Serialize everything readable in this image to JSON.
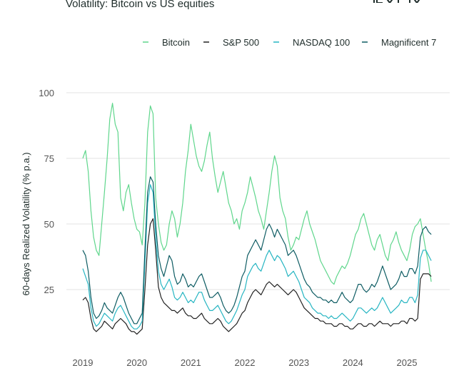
{
  "chart_data": {
    "type": "line",
    "title": "Volatility: Bitcoin vs US equities",
    "xlabel": "",
    "ylabel": "60-days Realized Volatility (% p.a.)",
    "ylim": [
      0,
      100
    ],
    "xlim": [
      2018.95,
      2025.6
    ],
    "yticks": [
      25,
      50,
      75,
      100
    ],
    "ytick_labels": [
      "25",
      "50",
      "75",
      "100"
    ],
    "xticks": [
      2019,
      2020,
      2021,
      2022,
      2023,
      2024,
      2025
    ],
    "xtick_labels": [
      "2019",
      "2020",
      "2021",
      "2022",
      "2023",
      "2024",
      "2025"
    ],
    "grid": true,
    "legend": "top-right",
    "series": [
      {
        "name": "Bitcoin",
        "color": "#5fd68c",
        "x": [
          2019.0,
          2019.05,
          2019.1,
          2019.15,
          2019.2,
          2019.25,
          2019.3,
          2019.35,
          2019.4,
          2019.45,
          2019.5,
          2019.55,
          2019.6,
          2019.65,
          2019.7,
          2019.75,
          2019.8,
          2019.85,
          2019.9,
          2019.95,
          2020.0,
          2020.05,
          2020.1,
          2020.15,
          2020.2,
          2020.25,
          2020.3,
          2020.35,
          2020.4,
          2020.45,
          2020.5,
          2020.55,
          2020.6,
          2020.65,
          2020.7,
          2020.75,
          2020.8,
          2020.85,
          2020.9,
          2020.95,
          2021.0,
          2021.05,
          2021.1,
          2021.15,
          2021.2,
          2021.25,
          2021.3,
          2021.35,
          2021.4,
          2021.45,
          2021.5,
          2021.55,
          2021.6,
          2021.65,
          2021.7,
          2021.75,
          2021.8,
          2021.85,
          2021.9,
          2021.95,
          2022.0,
          2022.05,
          2022.1,
          2022.15,
          2022.2,
          2022.25,
          2022.3,
          2022.35,
          2022.4,
          2022.45,
          2022.5,
          2022.55,
          2022.6,
          2022.65,
          2022.7,
          2022.75,
          2022.8,
          2022.85,
          2022.9,
          2022.95,
          2023.0,
          2023.05,
          2023.1,
          2023.15,
          2023.2,
          2023.25,
          2023.3,
          2023.35,
          2023.4,
          2023.45,
          2023.5,
          2023.55,
          2023.6,
          2023.65,
          2023.7,
          2023.75,
          2023.8,
          2023.85,
          2023.9,
          2023.95,
          2024.0,
          2024.05,
          2024.1,
          2024.15,
          2024.2,
          2024.25,
          2024.3,
          2024.35,
          2024.4,
          2024.45,
          2024.5,
          2024.55,
          2024.6,
          2024.65,
          2024.7,
          2024.75,
          2024.8,
          2024.85,
          2024.9,
          2024.95,
          2025.0,
          2025.05,
          2025.1,
          2025.15,
          2025.2,
          2025.25,
          2025.3,
          2025.35,
          2025.4,
          2025.45
        ],
        "values": [
          75,
          78,
          70,
          55,
          45,
          40,
          38,
          50,
          62,
          75,
          90,
          96,
          88,
          85,
          60,
          55,
          62,
          65,
          58,
          52,
          48,
          47,
          42,
          58,
          85,
          95,
          92,
          60,
          50,
          43,
          40,
          42,
          50,
          55,
          52,
          45,
          50,
          58,
          70,
          78,
          88,
          82,
          76,
          72,
          70,
          74,
          80,
          85,
          75,
          68,
          62,
          66,
          70,
          64,
          58,
          55,
          50,
          52,
          48,
          55,
          58,
          62,
          68,
          64,
          60,
          55,
          52,
          48,
          55,
          62,
          70,
          76,
          72,
          60,
          55,
          52,
          45,
          40,
          42,
          45,
          44,
          48,
          52,
          55,
          50,
          47,
          44,
          40,
          36,
          34,
          32,
          30,
          28,
          27,
          30,
          32,
          34,
          33,
          35,
          38,
          42,
          46,
          48,
          52,
          54,
          50,
          46,
          42,
          40,
          44,
          46,
          42,
          38,
          36,
          42,
          44,
          47,
          43,
          40,
          38,
          36,
          40,
          46,
          49,
          50,
          52,
          46,
          40,
          35,
          28
        ]
      },
      {
        "name": "S&P 500",
        "color": "#222222",
        "x": [
          2019.0,
          2019.05,
          2019.1,
          2019.15,
          2019.2,
          2019.25,
          2019.3,
          2019.35,
          2019.4,
          2019.45,
          2019.5,
          2019.55,
          2019.6,
          2019.65,
          2019.7,
          2019.75,
          2019.8,
          2019.85,
          2019.9,
          2019.95,
          2020.0,
          2020.05,
          2020.1,
          2020.15,
          2020.2,
          2020.25,
          2020.3,
          2020.35,
          2020.4,
          2020.45,
          2020.5,
          2020.55,
          2020.6,
          2020.65,
          2020.7,
          2020.75,
          2020.8,
          2020.85,
          2020.9,
          2020.95,
          2021.0,
          2021.05,
          2021.1,
          2021.15,
          2021.2,
          2021.25,
          2021.3,
          2021.35,
          2021.4,
          2021.45,
          2021.5,
          2021.55,
          2021.6,
          2021.65,
          2021.7,
          2021.75,
          2021.8,
          2021.85,
          2021.9,
          2021.95,
          2022.0,
          2022.05,
          2022.1,
          2022.15,
          2022.2,
          2022.25,
          2022.3,
          2022.35,
          2022.4,
          2022.45,
          2022.5,
          2022.55,
          2022.6,
          2022.65,
          2022.7,
          2022.75,
          2022.8,
          2022.85,
          2022.9,
          2022.95,
          2023.0,
          2023.05,
          2023.1,
          2023.15,
          2023.2,
          2023.25,
          2023.3,
          2023.35,
          2023.4,
          2023.45,
          2023.5,
          2023.55,
          2023.6,
          2023.65,
          2023.7,
          2023.75,
          2023.8,
          2023.85,
          2023.9,
          2023.95,
          2024.0,
          2024.05,
          2024.1,
          2024.15,
          2024.2,
          2024.25,
          2024.3,
          2024.35,
          2024.4,
          2024.45,
          2024.5,
          2024.55,
          2024.6,
          2024.65,
          2024.7,
          2024.75,
          2024.8,
          2024.85,
          2024.9,
          2024.95,
          2025.0,
          2025.05,
          2025.1,
          2025.15,
          2025.2,
          2025.25,
          2025.3,
          2025.35,
          2025.4,
          2025.45
        ],
        "values": [
          21,
          22,
          20,
          14,
          10,
          9,
          10,
          11,
          13,
          12,
          11,
          10,
          12,
          13,
          14,
          13,
          12,
          10,
          9,
          9,
          8,
          9,
          10,
          25,
          42,
          50,
          52,
          40,
          26,
          22,
          20,
          19,
          18,
          17,
          17,
          16,
          17,
          18,
          16,
          15,
          15,
          14,
          14,
          15,
          16,
          14,
          13,
          12,
          12,
          13,
          14,
          13,
          11,
          10,
          9,
          10,
          11,
          12,
          14,
          16,
          17,
          20,
          22,
          24,
          25,
          24,
          23,
          25,
          27,
          28,
          27,
          26,
          27,
          26,
          25,
          24,
          23,
          24,
          25,
          24,
          22,
          20,
          18,
          17,
          16,
          15,
          14,
          14,
          13,
          13,
          12,
          12,
          12,
          11,
          11,
          12,
          12,
          11,
          11,
          10,
          10,
          11,
          12,
          12,
          11,
          11,
          12,
          12,
          11,
          12,
          13,
          12,
          12,
          12,
          11,
          12,
          12,
          12,
          13,
          13,
          12,
          14,
          14,
          13,
          14,
          29,
          31,
          31,
          31,
          30
        ]
      },
      {
        "name": "NASDAQ 100",
        "color": "#26b5c2",
        "x": [
          2019.0,
          2019.05,
          2019.1,
          2019.15,
          2019.2,
          2019.25,
          2019.3,
          2019.35,
          2019.4,
          2019.45,
          2019.5,
          2019.55,
          2019.6,
          2019.65,
          2019.7,
          2019.75,
          2019.8,
          2019.85,
          2019.9,
          2019.95,
          2020.0,
          2020.05,
          2020.1,
          2020.15,
          2020.2,
          2020.25,
          2020.3,
          2020.35,
          2020.4,
          2020.45,
          2020.5,
          2020.55,
          2020.6,
          2020.65,
          2020.7,
          2020.75,
          2020.8,
          2020.85,
          2020.9,
          2020.95,
          2021.0,
          2021.05,
          2021.1,
          2021.15,
          2021.2,
          2021.25,
          2021.3,
          2021.35,
          2021.4,
          2021.45,
          2021.5,
          2021.55,
          2021.6,
          2021.65,
          2021.7,
          2021.75,
          2021.8,
          2021.85,
          2021.9,
          2021.95,
          2022.0,
          2022.05,
          2022.1,
          2022.15,
          2022.2,
          2022.25,
          2022.3,
          2022.35,
          2022.4,
          2022.45,
          2022.5,
          2022.55,
          2022.6,
          2022.65,
          2022.7,
          2022.75,
          2022.8,
          2022.85,
          2022.9,
          2022.95,
          2023.0,
          2023.05,
          2023.1,
          2023.15,
          2023.2,
          2023.25,
          2023.3,
          2023.35,
          2023.4,
          2023.45,
          2023.5,
          2023.55,
          2023.6,
          2023.65,
          2023.7,
          2023.75,
          2023.8,
          2023.85,
          2023.9,
          2023.95,
          2024.0,
          2024.05,
          2024.1,
          2024.15,
          2024.2,
          2024.25,
          2024.3,
          2024.35,
          2024.4,
          2024.45,
          2024.5,
          2024.55,
          2024.6,
          2024.65,
          2024.7,
          2024.75,
          2024.8,
          2024.85,
          2024.9,
          2024.95,
          2025.0,
          2025.05,
          2025.1,
          2025.15,
          2025.2,
          2025.25,
          2025.3,
          2025.35,
          2025.4,
          2025.45
        ],
        "values": [
          33,
          30,
          27,
          18,
          13,
          11,
          12,
          14,
          16,
          15,
          14,
          13,
          16,
          18,
          19,
          17,
          15,
          13,
          11,
          10,
          10,
          11,
          13,
          35,
          58,
          65,
          62,
          45,
          32,
          27,
          25,
          27,
          29,
          26,
          22,
          21,
          22,
          24,
          22,
          20,
          21,
          20,
          22,
          24,
          24,
          21,
          19,
          17,
          17,
          18,
          19,
          17,
          15,
          13,
          12,
          13,
          15,
          17,
          20,
          23,
          25,
          30,
          32,
          34,
          35,
          33,
          32,
          35,
          38,
          40,
          38,
          36,
          38,
          37,
          35,
          33,
          30,
          31,
          32,
          30,
          28,
          25,
          22,
          21,
          20,
          18,
          17,
          16,
          16,
          15,
          15,
          14,
          15,
          14,
          14,
          15,
          16,
          15,
          14,
          13,
          14,
          16,
          18,
          18,
          17,
          16,
          17,
          18,
          17,
          18,
          20,
          22,
          20,
          18,
          16,
          17,
          18,
          19,
          21,
          20,
          20,
          22,
          22,
          20,
          23,
          37,
          40,
          40,
          38,
          36
        ]
      },
      {
        "name": "Magnificent 7",
        "color": "#0e5c63",
        "x": [
          2019.0,
          2019.05,
          2019.1,
          2019.15,
          2019.2,
          2019.25,
          2019.3,
          2019.35,
          2019.4,
          2019.45,
          2019.5,
          2019.55,
          2019.6,
          2019.65,
          2019.7,
          2019.75,
          2019.8,
          2019.85,
          2019.9,
          2019.95,
          2020.0,
          2020.05,
          2020.1,
          2020.15,
          2020.2,
          2020.25,
          2020.3,
          2020.35,
          2020.4,
          2020.45,
          2020.5,
          2020.55,
          2020.6,
          2020.65,
          2020.7,
          2020.75,
          2020.8,
          2020.85,
          2020.9,
          2020.95,
          2021.0,
          2021.05,
          2021.1,
          2021.15,
          2021.2,
          2021.25,
          2021.3,
          2021.35,
          2021.4,
          2021.45,
          2021.5,
          2021.55,
          2021.6,
          2021.65,
          2021.7,
          2021.75,
          2021.8,
          2021.85,
          2021.9,
          2021.95,
          2022.0,
          2022.05,
          2022.1,
          2022.15,
          2022.2,
          2022.25,
          2022.3,
          2022.35,
          2022.4,
          2022.45,
          2022.5,
          2022.55,
          2022.6,
          2022.65,
          2022.7,
          2022.75,
          2022.8,
          2022.85,
          2022.9,
          2022.95,
          2023.0,
          2023.05,
          2023.1,
          2023.15,
          2023.2,
          2023.25,
          2023.3,
          2023.35,
          2023.4,
          2023.45,
          2023.5,
          2023.55,
          2023.6,
          2023.65,
          2023.7,
          2023.75,
          2023.8,
          2023.85,
          2023.9,
          2023.95,
          2024.0,
          2024.05,
          2024.1,
          2024.15,
          2024.2,
          2024.25,
          2024.3,
          2024.35,
          2024.4,
          2024.45,
          2024.5,
          2024.55,
          2024.6,
          2024.65,
          2024.7,
          2024.75,
          2024.8,
          2024.85,
          2024.9,
          2024.95,
          2025.0,
          2025.05,
          2025.1,
          2025.15,
          2025.2,
          2025.25,
          2025.3,
          2025.35,
          2025.4,
          2025.45
        ],
        "values": [
          40,
          38,
          32,
          22,
          16,
          14,
          15,
          17,
          20,
          18,
          17,
          16,
          19,
          22,
          24,
          22,
          19,
          16,
          14,
          12,
          12,
          14,
          16,
          40,
          62,
          68,
          66,
          50,
          38,
          33,
          30,
          34,
          38,
          36,
          30,
          27,
          28,
          31,
          29,
          26,
          27,
          26,
          28,
          30,
          31,
          28,
          25,
          22,
          22,
          23,
          24,
          22,
          19,
          17,
          16,
          17,
          19,
          22,
          26,
          30,
          32,
          38,
          40,
          42,
          44,
          42,
          40,
          44,
          48,
          50,
          48,
          45,
          48,
          46,
          44,
          42,
          38,
          39,
          40,
          38,
          35,
          32,
          29,
          27,
          26,
          24,
          23,
          22,
          22,
          21,
          21,
          20,
          21,
          20,
          20,
          22,
          24,
          22,
          21,
          20,
          21,
          24,
          27,
          27,
          25,
          24,
          25,
          27,
          26,
          28,
          31,
          34,
          31,
          28,
          25,
          26,
          27,
          29,
          32,
          30,
          30,
          33,
          33,
          31,
          34,
          45,
          48,
          49,
          47,
          46
        ]
      }
    ]
  }
}
